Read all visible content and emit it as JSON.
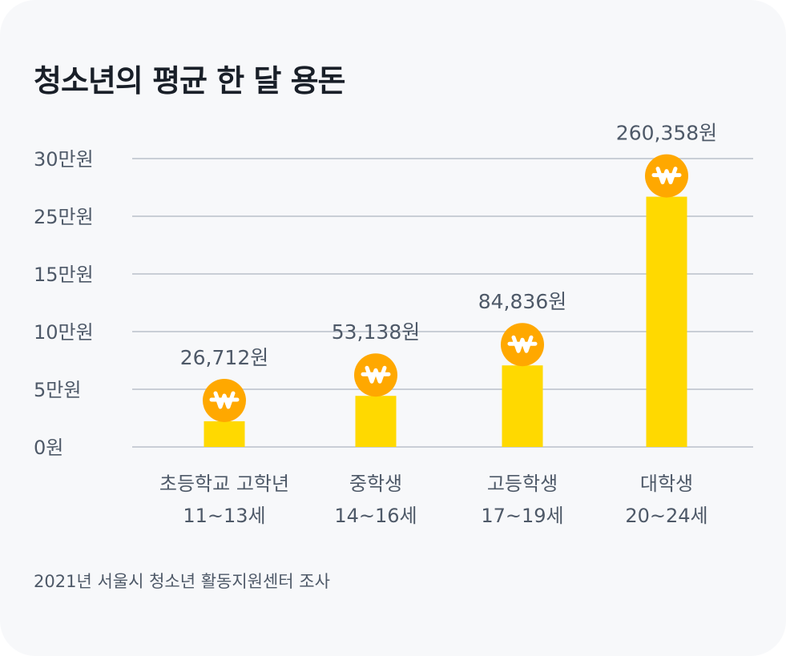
{
  "chart_data": {
    "type": "bar",
    "title": "청소년의 평균 한 달 용돈",
    "categories": [
      {
        "line1": "초등학교 고학년",
        "line2": "11~13세"
      },
      {
        "line1": "중학생",
        "line2": "14~16세"
      },
      {
        "line1": "고등학생",
        "line2": "17~19세"
      },
      {
        "line1": "대학생",
        "line2": "20~24세"
      }
    ],
    "values": [
      26712,
      53138,
      84836,
      260358
    ],
    "value_labels": [
      "26,712원",
      "53,138원",
      "84,836원",
      "260,358원"
    ],
    "y_ticks": [
      "0원",
      "5만원",
      "10만원",
      "15만원",
      "25만원",
      "30만원"
    ],
    "ylim": [
      0,
      300000
    ],
    "grid": true,
    "bar_color": "#ffd900",
    "coin_color": "#ffa800",
    "coin_icon": "won-coin-icon",
    "source": "2021년 서울시 청소년 활동지원센터 조사"
  }
}
